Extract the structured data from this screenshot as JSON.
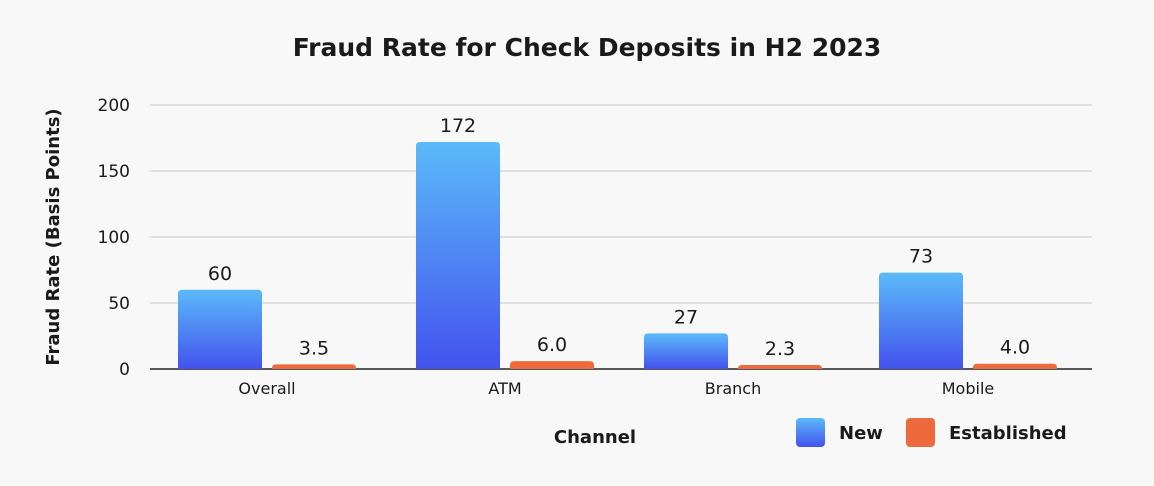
{
  "chart_data": {
    "type": "bar",
    "title": "Fraud Rate for Check Deposits in H2 2023",
    "xlabel": "Channel",
    "ylabel": "Fraud Rate (Basis Points)",
    "ylim": [
      0,
      200
    ],
    "yticks": [
      0,
      50,
      100,
      150,
      200
    ],
    "grid": true,
    "legend_position": "bottom-right",
    "categories": [
      "Overall",
      "ATM",
      "Branch",
      "Mobile"
    ],
    "series": [
      {
        "name": "New",
        "values": [
          60,
          172,
          27,
          73
        ],
        "labels": [
          "60",
          "172",
          "27",
          "73"
        ],
        "color": "#4a8cf5",
        "gradient": [
          "#5bbaf9",
          "#4352ee"
        ]
      },
      {
        "name": "Established",
        "values": [
          3.5,
          6.0,
          2.3,
          4.0
        ],
        "labels": [
          "3.5",
          "6.0",
          "2.3",
          "4.0"
        ],
        "color": "#ec6a3c"
      }
    ]
  }
}
